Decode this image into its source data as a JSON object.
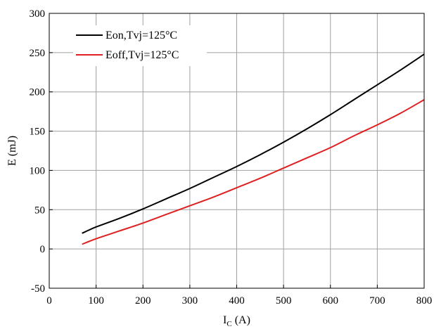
{
  "chart_data": {
    "type": "line",
    "title": "",
    "xlabel": "I",
    "xlabel_sub": "C",
    "xlabel_unit": "(A)",
    "ylabel": "E (mJ)",
    "xlim": [
      0,
      800
    ],
    "ylim": [
      -50,
      300
    ],
    "xticks": [
      0,
      100,
      200,
      300,
      400,
      500,
      600,
      700,
      800
    ],
    "yticks": [
      -50,
      0,
      50,
      100,
      150,
      200,
      250,
      300
    ],
    "grid": true,
    "legend_position": "top-left",
    "series": [
      {
        "name": "Eon,Tvj=125°C",
        "color": "#000000",
        "x": [
          70,
          100,
          150,
          200,
          250,
          300,
          350,
          400,
          450,
          500,
          550,
          600,
          650,
          700,
          750,
          800
        ],
        "y": [
          20,
          28,
          39,
          51,
          64,
          77,
          91,
          105,
          120,
          136,
          153,
          171,
          190,
          209,
          228,
          248
        ]
      },
      {
        "name": "Eoff,Tvj=125°C",
        "color": "#e02020",
        "x": [
          70,
          100,
          150,
          200,
          250,
          300,
          350,
          400,
          450,
          500,
          550,
          600,
          650,
          700,
          750,
          800
        ],
        "y": [
          6,
          13,
          23,
          33,
          44,
          55,
          66,
          78,
          90,
          103,
          116,
          129,
          144,
          158,
          173,
          190
        ]
      }
    ]
  }
}
